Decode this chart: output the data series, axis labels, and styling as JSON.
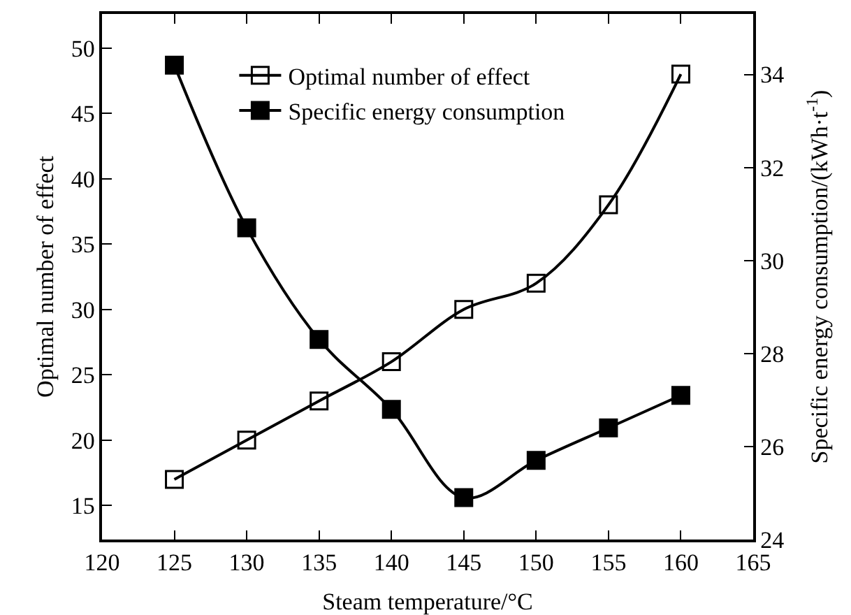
{
  "chart_data": {
    "type": "line",
    "xlabel": "Steam temperature/°C",
    "ylabel": "Optimal number of effect",
    "y2label": "Specific energy consumption/(kWh·t$^{-1}$)",
    "x": [
      125,
      130,
      135,
      140,
      145,
      150,
      155,
      160
    ],
    "series": [
      {
        "name": "Optimal number of effect",
        "color": "#000000",
        "marker": "square-open",
        "values": [
          17,
          20,
          23,
          26,
          30,
          32,
          38,
          48
        ]
      },
      {
        "name": "Specific energy consumption",
        "color": "#000000",
        "marker": "square",
        "axis": "y2",
        "values": [
          34.2,
          30.7,
          28.3,
          26.8,
          24.9,
          25.7,
          26.4,
          27.1
        ]
      }
    ],
    "xlim": [
      120,
      165
    ],
    "xticks": [
      120,
      125,
      130,
      135,
      140,
      145,
      150,
      155,
      160,
      165
    ],
    "ylim": [
      12.4,
      52.6
    ],
    "yticks": [
      15,
      20,
      25,
      30,
      35,
      40,
      45,
      50
    ],
    "y2lim": [
      24,
      35.3
    ],
    "y2ticks": [
      24,
      26,
      28,
      30,
      32,
      34
    ],
    "grid": false,
    "legend": "top left",
    "line_style": "solid"
  }
}
